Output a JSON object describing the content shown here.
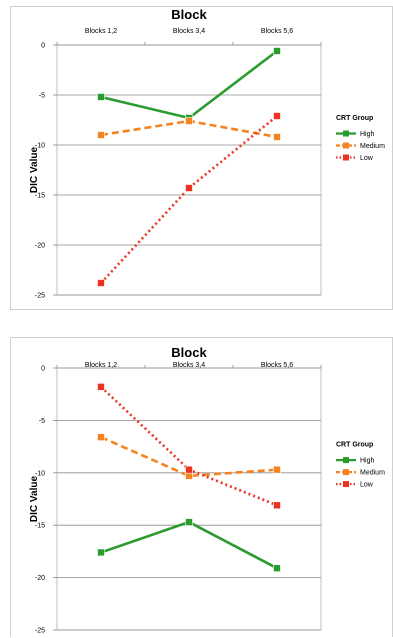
{
  "chart_data": [
    {
      "type": "line",
      "title": "Block",
      "categories": [
        "Blocks 1,2",
        "Blocks 3,4",
        "Blocks 5,6"
      ],
      "ylabel": "DIC Value",
      "ylim": [
        -25,
        0
      ],
      "yticks": [
        0,
        -5,
        -10,
        -15,
        -20,
        -25
      ],
      "grid": true,
      "legend_position": "right",
      "legend_title": "CRT Group",
      "series": [
        {
          "name": "High",
          "values": [
            -5.2,
            -7.3,
            -0.6
          ],
          "color": "#2a9b2e",
          "dash": "solid"
        },
        {
          "name": "Medium",
          "values": [
            -9.0,
            -7.6,
            -9.2
          ],
          "color": "#f5831f",
          "dash": "dashed"
        },
        {
          "name": "Low",
          "values": [
            -23.8,
            -14.3,
            -7.1
          ],
          "color": "#ec3323",
          "dash": "dotted"
        }
      ]
    },
    {
      "type": "line",
      "title": "Block",
      "categories": [
        "Blocks 1,2",
        "Blocks 3,4",
        "Blocks 5,6"
      ],
      "ylabel": "DIC Value",
      "ylim": [
        -25,
        0
      ],
      "yticks": [
        0,
        -5,
        -10,
        -15,
        -20,
        -25
      ],
      "grid": true,
      "legend_position": "right",
      "legend_title": "CRT Group",
      "series": [
        {
          "name": "High",
          "values": [
            -17.6,
            -14.7,
            -19.1
          ],
          "color": "#2a9b2e",
          "dash": "solid"
        },
        {
          "name": "Medium",
          "values": [
            -6.6,
            -10.3,
            -9.7
          ],
          "color": "#f5831f",
          "dash": "dashed"
        },
        {
          "name": "Low",
          "values": [
            -1.8,
            -9.7,
            -13.1
          ],
          "color": "#ec3323",
          "dash": "dotted"
        }
      ]
    }
  ]
}
